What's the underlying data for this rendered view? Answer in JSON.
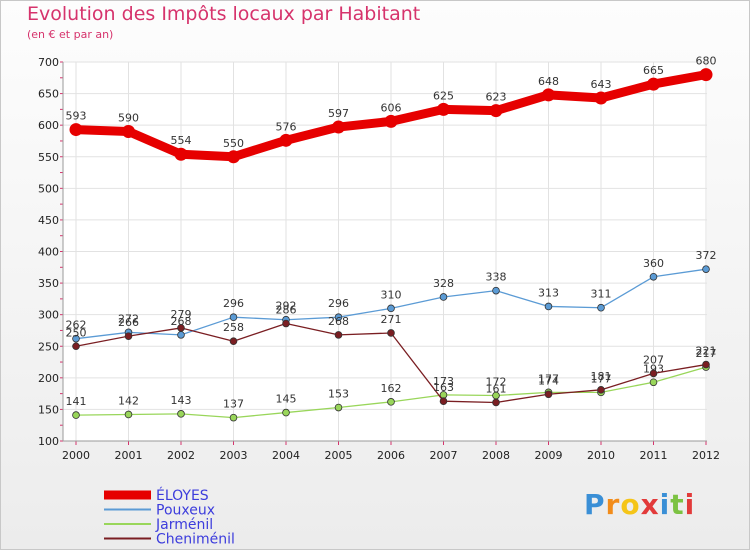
{
  "title": "Evolution des Impôts locaux par Habitant",
  "subtitle": "(en € et par an)",
  "brand": {
    "letters": [
      "P",
      "r",
      "o",
      "x",
      "i",
      "t",
      "i"
    ],
    "colors": [
      "#3a8fd6",
      "#f28c1a",
      "#f5c518",
      "#e23a3a",
      "#3a8fd6",
      "#7cc242",
      "#e23a3a"
    ]
  },
  "chart_data": {
    "type": "line",
    "x": [
      "2000",
      "2001",
      "2002",
      "2003",
      "2004",
      "2005",
      "2006",
      "2007",
      "2008",
      "2009",
      "2010",
      "2011",
      "2012"
    ],
    "ylim": [
      100,
      700
    ],
    "yticks": [
      "100",
      "150",
      "200",
      "250",
      "300",
      "350",
      "400",
      "450",
      "500",
      "550",
      "600",
      "650",
      "700"
    ],
    "grid": true,
    "legend_placement": "bottom-left",
    "series": [
      {
        "name": "ÉLOYES",
        "color": "#e60000",
        "legend_color": "#3c3cdc",
        "emphasis": true,
        "values": [
          593,
          590,
          554,
          550,
          576,
          597,
          606,
          625,
          623,
          648,
          643,
          665,
          680
        ],
        "labels": [
          "593",
          "590",
          "554",
          "550",
          "576",
          "597",
          "606",
          "625",
          "623",
          "648",
          "643",
          "665",
          "680"
        ]
      },
      {
        "name": "Pouxeux",
        "color": "#5b9bd5",
        "legend_color": "#3c3cdc",
        "values": [
          262,
          272,
          268,
          296,
          292,
          296,
          310,
          328,
          338,
          313,
          311,
          360,
          372
        ],
        "labels": [
          "262",
          "272",
          "268",
          "296",
          "292",
          "296",
          "310",
          "328",
          "338",
          "313",
          "311",
          "360",
          "372"
        ]
      },
      {
        "name": "Jarménil",
        "color": "#99d65a",
        "legend_color": "#3c3cdc",
        "values": [
          141,
          142,
          143,
          137,
          145,
          153,
          162,
          173,
          172,
          177,
          177,
          193,
          217
        ],
        "labels": [
          "141",
          "142",
          "143",
          "137",
          "145",
          "153",
          "162",
          "173",
          "172",
          "177",
          "177",
          "193",
          "217"
        ]
      },
      {
        "name": "Cheniménil",
        "color": "#7a1e22",
        "legend_color": "#3c3cdc",
        "values": [
          250,
          266,
          279,
          258,
          286,
          268,
          271,
          163,
          161,
          174,
          181,
          207,
          221
        ],
        "labels": [
          "250",
          "266",
          "279",
          "258",
          "286",
          "268",
          "271",
          "163",
          "161",
          "174",
          "181",
          "207",
          "221"
        ]
      }
    ]
  }
}
